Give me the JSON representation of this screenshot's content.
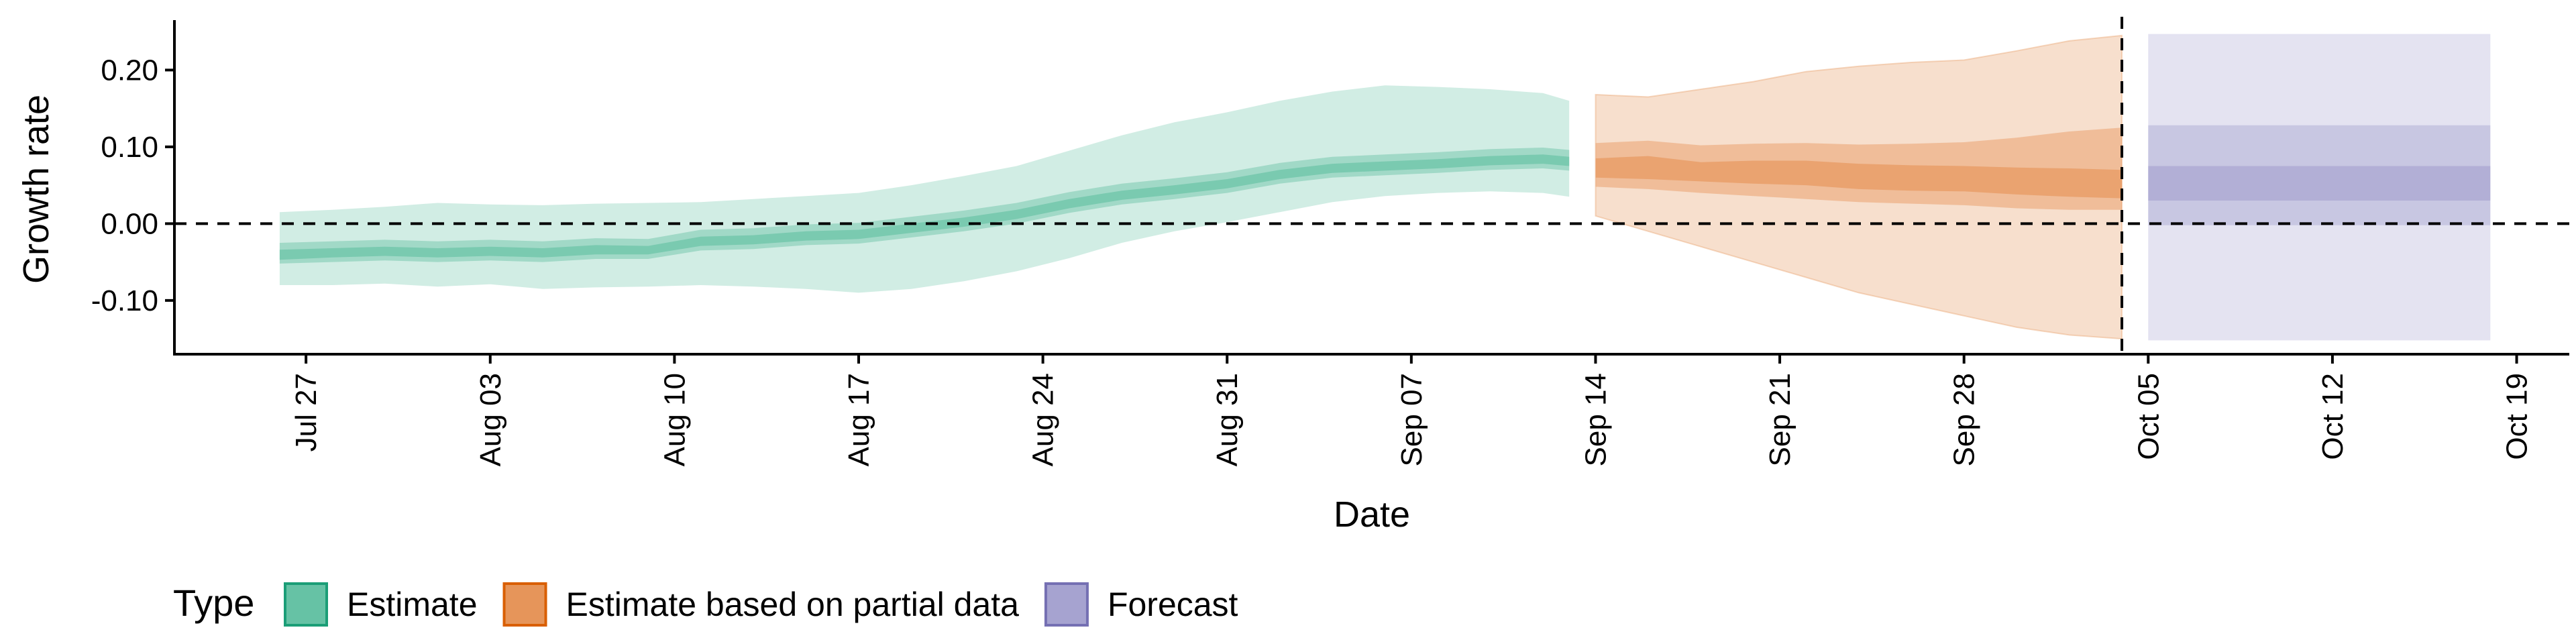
{
  "chart_data": {
    "type": "area",
    "title": "",
    "xlabel": "Date",
    "ylabel": "Growth rate",
    "x_axis": {
      "type": "date",
      "range": [
        "2020-07-22",
        "2020-10-21"
      ],
      "ticks": [
        {
          "date": "2020-07-27",
          "label": "Jul 27"
        },
        {
          "date": "2020-08-03",
          "label": "Aug 03"
        },
        {
          "date": "2020-08-10",
          "label": "Aug 10"
        },
        {
          "date": "2020-08-17",
          "label": "Aug 17"
        },
        {
          "date": "2020-08-24",
          "label": "Aug 24"
        },
        {
          "date": "2020-08-31",
          "label": "Aug 31"
        },
        {
          "date": "2020-09-07",
          "label": "Sep 07"
        },
        {
          "date": "2020-09-14",
          "label": "Sep 14"
        },
        {
          "date": "2020-09-21",
          "label": "Sep 21"
        },
        {
          "date": "2020-09-28",
          "label": "Sep 28"
        },
        {
          "date": "2020-10-05",
          "label": "Oct 05"
        },
        {
          "date": "2020-10-12",
          "label": "Oct 12"
        },
        {
          "date": "2020-10-19",
          "label": "Oct 19"
        }
      ]
    },
    "y_axis": {
      "range": [
        -0.17,
        0.265
      ],
      "ticks": [
        {
          "value": -0.1,
          "label": "-0.10"
        },
        {
          "value": 0.0,
          "label": "0.00"
        },
        {
          "value": 0.1,
          "label": "0.10"
        },
        {
          "value": 0.2,
          "label": "0.20"
        }
      ]
    },
    "reference_lines": [
      {
        "axis": "y",
        "value": 0,
        "style": "dashed"
      },
      {
        "axis": "x",
        "value": "2020-10-04",
        "style": "dashed"
      }
    ],
    "grid": false,
    "legend": {
      "title": "Type",
      "position": "bottom-left",
      "entries": [
        {
          "label": "Estimate",
          "fill": "#66c2a5",
          "stroke": "#1b9e77"
        },
        {
          "label": "Estimate based on partial data",
          "fill": "#e6955a",
          "stroke": "#d95f02"
        },
        {
          "label": "Forecast",
          "fill": "#a6a3d0",
          "stroke": "#7570b3"
        }
      ]
    },
    "series": [
      {
        "name": "Estimate",
        "color": "#66c2a5",
        "bands": [
          "90%",
          "50%",
          "20%"
        ],
        "points": [
          {
            "date": "2020-07-26",
            "lo90": -0.08,
            "lo50": -0.052,
            "lo20": -0.047,
            "hi20": -0.034,
            "hi50": -0.025,
            "hi90": 0.015
          },
          {
            "date": "2020-07-28",
            "lo90": -0.08,
            "lo50": -0.05,
            "lo20": -0.044,
            "hi20": -0.032,
            "hi50": -0.023,
            "hi90": 0.018
          },
          {
            "date": "2020-07-30",
            "lo90": -0.078,
            "lo50": -0.048,
            "lo20": -0.042,
            "hi20": -0.03,
            "hi50": -0.021,
            "hi90": 0.022
          },
          {
            "date": "2020-08-01",
            "lo90": -0.082,
            "lo50": -0.05,
            "lo20": -0.044,
            "hi20": -0.032,
            "hi50": -0.023,
            "hi90": 0.027
          },
          {
            "date": "2020-08-03",
            "lo90": -0.079,
            "lo50": -0.048,
            "lo20": -0.042,
            "hi20": -0.03,
            "hi50": -0.021,
            "hi90": 0.025
          },
          {
            "date": "2020-08-05",
            "lo90": -0.085,
            "lo50": -0.05,
            "lo20": -0.044,
            "hi20": -0.032,
            "hi50": -0.023,
            "hi90": 0.024
          },
          {
            "date": "2020-08-07",
            "lo90": -0.083,
            "lo50": -0.046,
            "lo20": -0.04,
            "hi20": -0.028,
            "hi50": -0.019,
            "hi90": 0.026
          },
          {
            "date": "2020-08-09",
            "lo90": -0.082,
            "lo50": -0.046,
            "lo20": -0.04,
            "hi20": -0.029,
            "hi50": -0.02,
            "hi90": 0.027
          },
          {
            "date": "2020-08-11",
            "lo90": -0.08,
            "lo50": -0.035,
            "lo20": -0.029,
            "hi20": -0.017,
            "hi50": -0.008,
            "hi90": 0.028
          },
          {
            "date": "2020-08-13",
            "lo90": -0.082,
            "lo50": -0.033,
            "lo20": -0.027,
            "hi20": -0.015,
            "hi50": -0.006,
            "hi90": 0.032
          },
          {
            "date": "2020-08-15",
            "lo90": -0.085,
            "lo50": -0.028,
            "lo20": -0.022,
            "hi20": -0.01,
            "hi50": -0.001,
            "hi90": 0.036
          },
          {
            "date": "2020-08-17",
            "lo90": -0.09,
            "lo50": -0.026,
            "lo20": -0.02,
            "hi20": -0.008,
            "hi50": 0.001,
            "hi90": 0.04
          },
          {
            "date": "2020-08-19",
            "lo90": -0.085,
            "lo50": -0.018,
            "lo20": -0.012,
            "hi20": 0.0,
            "hi50": 0.009,
            "hi90": 0.05
          },
          {
            "date": "2020-08-21",
            "lo90": -0.075,
            "lo50": -0.01,
            "lo20": -0.004,
            "hi20": 0.008,
            "hi50": 0.017,
            "hi90": 0.062
          },
          {
            "date": "2020-08-23",
            "lo90": -0.062,
            "lo50": 0.0,
            "lo20": 0.006,
            "hi20": 0.018,
            "hi50": 0.027,
            "hi90": 0.075
          },
          {
            "date": "2020-08-25",
            "lo90": -0.045,
            "lo50": 0.014,
            "lo20": 0.02,
            "hi20": 0.032,
            "hi50": 0.041,
            "hi90": 0.095
          },
          {
            "date": "2020-08-27",
            "lo90": -0.025,
            "lo50": 0.025,
            "lo20": 0.031,
            "hi20": 0.043,
            "hi50": 0.052,
            "hi90": 0.115
          },
          {
            "date": "2020-08-29",
            "lo90": -0.01,
            "lo50": 0.032,
            "lo20": 0.038,
            "hi20": 0.05,
            "hi50": 0.059,
            "hi90": 0.132
          },
          {
            "date": "2020-08-31",
            "lo90": 0.002,
            "lo50": 0.04,
            "lo20": 0.046,
            "hi20": 0.058,
            "hi50": 0.067,
            "hi90": 0.145
          },
          {
            "date": "2020-09-02",
            "lo90": 0.015,
            "lo50": 0.052,
            "lo20": 0.058,
            "hi20": 0.07,
            "hi50": 0.079,
            "hi90": 0.16
          },
          {
            "date": "2020-09-04",
            "lo90": 0.028,
            "lo50": 0.06,
            "lo20": 0.066,
            "hi20": 0.078,
            "hi50": 0.087,
            "hi90": 0.172
          },
          {
            "date": "2020-09-06",
            "lo90": 0.036,
            "lo50": 0.063,
            "lo20": 0.069,
            "hi20": 0.081,
            "hi50": 0.09,
            "hi90": 0.18
          },
          {
            "date": "2020-09-08",
            "lo90": 0.04,
            "lo50": 0.066,
            "lo20": 0.072,
            "hi20": 0.084,
            "hi50": 0.093,
            "hi90": 0.178
          },
          {
            "date": "2020-09-10",
            "lo90": 0.042,
            "lo50": 0.07,
            "lo20": 0.076,
            "hi20": 0.088,
            "hi50": 0.097,
            "hi90": 0.175
          },
          {
            "date": "2020-09-12",
            "lo90": 0.04,
            "lo50": 0.072,
            "lo20": 0.078,
            "hi20": 0.09,
            "hi50": 0.099,
            "hi90": 0.17
          },
          {
            "date": "2020-09-13",
            "lo90": 0.035,
            "lo50": 0.069,
            "lo20": 0.075,
            "hi20": 0.087,
            "hi50": 0.096,
            "hi90": 0.16
          }
        ]
      },
      {
        "name": "Estimate based on partial data",
        "color": "#e6955a",
        "bands": [
          "90%",
          "50%",
          "20%"
        ],
        "points": [
          {
            "date": "2020-09-14",
            "lo90": 0.01,
            "lo50": 0.048,
            "lo20": 0.06,
            "hi20": 0.085,
            "hi50": 0.105,
            "hi90": 0.168
          },
          {
            "date": "2020-09-16",
            "lo90": -0.01,
            "lo50": 0.045,
            "lo20": 0.058,
            "hi20": 0.088,
            "hi50": 0.108,
            "hi90": 0.165
          },
          {
            "date": "2020-09-18",
            "lo90": -0.03,
            "lo50": 0.04,
            "lo20": 0.055,
            "hi20": 0.08,
            "hi50": 0.102,
            "hi90": 0.175
          },
          {
            "date": "2020-09-20",
            "lo90": -0.05,
            "lo50": 0.036,
            "lo20": 0.052,
            "hi20": 0.082,
            "hi50": 0.104,
            "hi90": 0.185
          },
          {
            "date": "2020-09-22",
            "lo90": -0.07,
            "lo50": 0.032,
            "lo20": 0.05,
            "hi20": 0.082,
            "hi50": 0.105,
            "hi90": 0.198
          },
          {
            "date": "2020-09-24",
            "lo90": -0.09,
            "lo50": 0.028,
            "lo20": 0.045,
            "hi20": 0.078,
            "hi50": 0.103,
            "hi90": 0.205
          },
          {
            "date": "2020-09-26",
            "lo90": -0.105,
            "lo50": 0.026,
            "lo20": 0.043,
            "hi20": 0.076,
            "hi50": 0.104,
            "hi90": 0.21
          },
          {
            "date": "2020-09-28",
            "lo90": -0.12,
            "lo50": 0.024,
            "lo20": 0.042,
            "hi20": 0.075,
            "hi50": 0.106,
            "hi90": 0.213
          },
          {
            "date": "2020-09-30",
            "lo90": -0.135,
            "lo50": 0.02,
            "lo20": 0.038,
            "hi20": 0.073,
            "hi50": 0.112,
            "hi90": 0.225
          },
          {
            "date": "2020-10-02",
            "lo90": -0.145,
            "lo50": 0.018,
            "lo20": 0.035,
            "hi20": 0.072,
            "hi50": 0.12,
            "hi90": 0.238
          },
          {
            "date": "2020-10-04",
            "lo90": -0.15,
            "lo50": 0.018,
            "lo20": 0.033,
            "hi20": 0.07,
            "hi50": 0.125,
            "hi90": 0.245
          }
        ]
      },
      {
        "name": "Forecast",
        "color": "#a6a3d0",
        "bands": [
          "90%",
          "50%",
          "20%"
        ],
        "points": [
          {
            "date": "2020-10-05",
            "lo90": -0.152,
            "lo50": -0.002,
            "lo20": 0.03,
            "hi20": 0.075,
            "hi50": 0.128,
            "hi90": 0.247
          },
          {
            "date": "2020-10-18",
            "lo90": -0.152,
            "lo50": -0.002,
            "lo20": 0.03,
            "hi20": 0.075,
            "hi50": 0.128,
            "hi90": 0.247
          }
        ]
      }
    ]
  }
}
